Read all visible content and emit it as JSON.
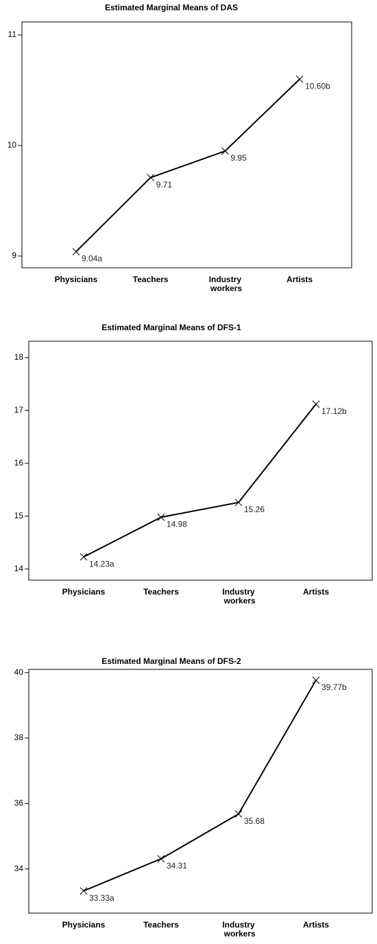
{
  "chart_data": [
    {
      "type": "line",
      "title": "Estimated Marginal Means of DAS",
      "categories": [
        "Physicians",
        "Teachers",
        "Industry workers",
        "Artists"
      ],
      "values": [
        9.04,
        9.71,
        9.95,
        10.6
      ],
      "value_labels": [
        "9.04a",
        "9.71",
        "9.95",
        "10.60b"
      ],
      "color": "#000000",
      "ylim": [
        8.894,
        11.118
      ],
      "yticks": [
        9,
        10,
        11
      ]
    },
    {
      "type": "line",
      "title": "Estimated Marginal Means of DFS-1",
      "categories": [
        "Physicians",
        "Teachers",
        "Industry workers",
        "Artists"
      ],
      "values": [
        14.23,
        14.98,
        15.26,
        17.12
      ],
      "value_labels": [
        "14.23a",
        "14.98",
        "15.26",
        "17.12b"
      ],
      "color": "#000000",
      "ylim": [
        13.79,
        18.31
      ],
      "yticks": [
        14,
        15,
        16,
        17,
        18
      ]
    },
    {
      "type": "line",
      "title": "Estimated Marginal Means of DFS-2",
      "categories": [
        "Physicians",
        "Teachers",
        "Industry workers",
        "Artists"
      ],
      "values": [
        33.33,
        34.31,
        35.68,
        39.77
      ],
      "value_labels": [
        "33.33a",
        "34.31",
        "35.68",
        "39.77b"
      ],
      "color": "#000000",
      "ylim": [
        32.65,
        40.1
      ],
      "yticks": [
        34,
        36,
        38,
        40
      ]
    }
  ]
}
